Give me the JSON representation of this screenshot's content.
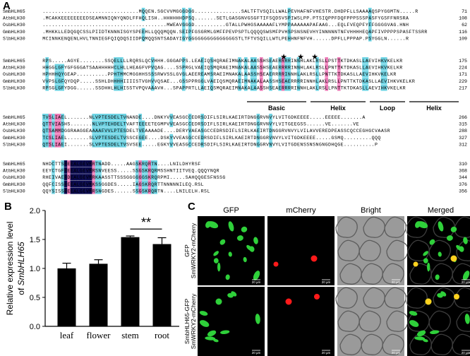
{
  "panels": {
    "a": "A",
    "b": "B",
    "c": "C"
  },
  "colors": {
    "navy": "#0b0b4f",
    "cyan": "#6fd4e4",
    "pink": "#ee7bb8",
    "bar": "#000000",
    "gfp": "#2fd03a",
    "mcherry": "#ff1a1a",
    "merged_overlap": "#ffd21f",
    "bright_bg": "#9a9a9a"
  },
  "alignment": {
    "motif_star": "★",
    "domains": [
      "Basic",
      "Helix",
      "Loop",
      "Helix"
    ],
    "blocks": [
      {
        "rows": [
          {
            "name": "SmbHLH65",
            "seq": "...............................MQQEN.SGCVVMGGGDGG...............SALTFTVSQILLWALPEVHAFNFVHESTR.DHDPFLLSAAAAQSPYGGMTN.....R",
            "end": "71"
          },
          {
            "name": "AtbHLH30",
            "seq": ".MCAKKEEEEEEEEDSEAMNNIQNYQNDLFFHQLISH..HHHHHHDPSQ.......SETLGASGNVGSGFTIFSQDSVSPIWSLPP.PTSIQPPFDQFPPPSSSPASFYGSFFNRSRA",
            "end": "108"
          },
          {
            "name": "OsbHLH30",
            "seq": "........................................MWEAVGGGD..........GTALLPWHGSAAAAAFLYMPPAAAAAAPAFAAG...EQLFVEQPFYFFGGGGVAG.HNH",
            "end": "62"
          },
          {
            "name": "GmbHLH30",
            "seq": ".MHKKLLEDQGQCSSLPIIDTKNNNISGYSPEEHLLQQQMQQN.SEIPFGSGRMLGMFFPEVPSPTLQQQQSWSMFPVHSPSNSNEVHYINNNNNTNFVHHHHEQAPFIVPPPPSPASFTSSRR",
            "end": "116"
          },
          {
            "name": "SlbHLH30",
            "seq": "MCINNKENQENLHVLTNNIEGFQIQDQSIIDPQMQQSNTSADAYIGYGGGGGGGGGGGGGGGSTLTFTVSQILLWTLPEHHNFNFVH......DPFLLPPPAP.PSYGGLN......R",
            "end": "109"
          }
        ]
      },
      {
        "rows": [
          {
            "name": "SmbHLH65",
            "seq": "RPS.....AGYE........SSQELLLLRQRSLQCVHHH.GGGAPPS.LEAEIQSHQRAEIMNAKALAASSHSEAERRRRINNHLAKLRSLLPSTTKTDKASLLAEVIHKVKELKR",
            "end": "175"
          },
          {
            "name": "AtbHLH30",
            "seq": "HHGGLGFYGFGGGATSAAHHHHHCLHLLHEAGFVPVQAG....SSPRGLVAEIQSMQRAEIMNAKALAASSHSEAERRRRINNHLAKLRSLLPNTTKTDKASLLAEVIHKVKELKR",
            "end": "224"
          },
          {
            "name": "OsbHLH30",
            "seq": "HPHHHQYGEAP..........PPHTMMCMGGHHSSSSRWVSSLGVGLAEEREAMSRAEIMNAKALAASSHSEAERRRRINNHLAKLRSLLPNTTKTDKASLLAEVIHKVKELKR",
            "end": "171"
          },
          {
            "name": "GmbHLH30",
            "seq": "VVPSLGFQYDQP.....SSHLDHHHHIIIISTVGHVVQSAE...GSSPPRGGLVAEIQSMQRAEIMNAKALAASSHSEAERRRRINNHLAKLRSLLPNTTKTDKASLLAEVIHKVKELKR",
            "end": "229"
          },
          {
            "name": "SlbHLH30",
            "seq": "RPSGLGFYDGG......SSDHHLHLHISSTVPQVAAAVH...SPAPPRTLLAEIQSMQRAEIMNAKALAASSHSEAERRRRINNHLAKLRSLLPNTTKTDKASLLAEVIHKVKELKR",
            "end": "217"
          }
        ]
      },
      {
        "rows": [
          {
            "name": "SmbHLH65",
            "seq": "TVSLIAEL.......NLVPTESDELTVNANDE....DNKYVVEASGCCEDRSDIFLSIRLKAEIRTDNGGRVNVYLVITGDKEEEE.....EEEEE.......A",
            "end": "266"
          },
          {
            "name": "AtbHLH30",
            "seq": "QTTVIASHS.......NLVPTEHDELTVAFTEEEETEGMPVVEASGCCEDRSDIFLSIRLKAEIRTDNGGRVNVYLVITGEEGSS......VE.......VE",
            "end": "315"
          },
          {
            "name": "OsbHLH30",
            "seq": "QTSAMMDGGRAAGGEAAAAFVVLPTESDELTVEAAAADE....DERYVAEASGCCEDRSDIFLSIRLKAEIRTDNGGRVNVYLVILAVVEREDPEASSCQCCEGHGCVAASR",
            "end": "288"
          },
          {
            "name": "GmbHLH30",
            "seq": "TCSLIAEL.......SLVPTESDELTVSSCEGEE....DSKYVVEASGCCEDRSDIFLSIRLKAEIRTDNGGRVNVYLVITGDKEEEE.....GSMQ.........QQQ",
            "end": "327"
          },
          {
            "name": "SlbHLH30",
            "seq": "QTSLIAEI.......SLVPTESDELTVSVSEE.....EGKYVVEASGCCEDRSDIFLSIRLKAEIRTDNGGRVNVYLVITGDENSSNSNGNGDHQGE..........P",
            "end": "312"
          }
        ]
      },
      {
        "rows": [
          {
            "name": "SmbHLH65",
            "seq": "NHDCTTSREEALGEVMRTNADD.....AAGSKRQRTN....LNILDHYRSF",
            "end": "310"
          },
          {
            "name": "AtbHLH30",
            "seq": "EEYCTGFREEALGEVMRSNVEESS.....SSGSKRQRMSSHNTIITVEQ.QQQYNQR",
            "end": "368"
          },
          {
            "name": "OsbHLH30",
            "seq": "RHEIVAERDEALGEVMRKAASSTTSSSGGGGGGSKRQRPMI.....SAHQQGESFNSSG",
            "end": "344"
          },
          {
            "name": "GmbHLH30",
            "seq": "QQFCISSREEALGEVMKSSGGDES.....IAGSKRQRTTNNNNNILEQ.RSL",
            "end": "376"
          },
          {
            "name": "SlbHLH30",
            "seq": "QQYSISSREEALGEVMRSNGDES......SSGSKRQRTN....LNILELH.RSL",
            "end": "356"
          }
        ]
      }
    ]
  },
  "chart_data": {
    "type": "bar",
    "categories": [
      "leaf",
      "flower",
      "stem",
      "root"
    ],
    "values": [
      1.0,
      1.08,
      1.54,
      1.42
    ],
    "errors": [
      0.09,
      0.07,
      0.02,
      0.11
    ],
    "ylabel_line1": "Relative expression level",
    "ylabel_line2_prefix": "of ",
    "ylabel_line2_gene": "SmbHLH65",
    "ylim": [
      0,
      2.0
    ],
    "yticks": [
      "0.0",
      "0.5",
      "1.0",
      "1.5",
      "2.0"
    ],
    "significance": {
      "label": "**",
      "from": "stem",
      "to": "root"
    },
    "grid": false
  },
  "micrographs": {
    "columns": [
      "GFP",
      "mCherry",
      "Bright",
      "Merged"
    ],
    "rows": [
      {
        "line1": "GFP",
        "line2": "SmWRKY2-mCherry",
        "scale": "20 μm"
      },
      {
        "line1": "SmbHLH65-GFP",
        "line2": "SmWRKY2-mCherry",
        "scale": "20 μm"
      }
    ]
  }
}
